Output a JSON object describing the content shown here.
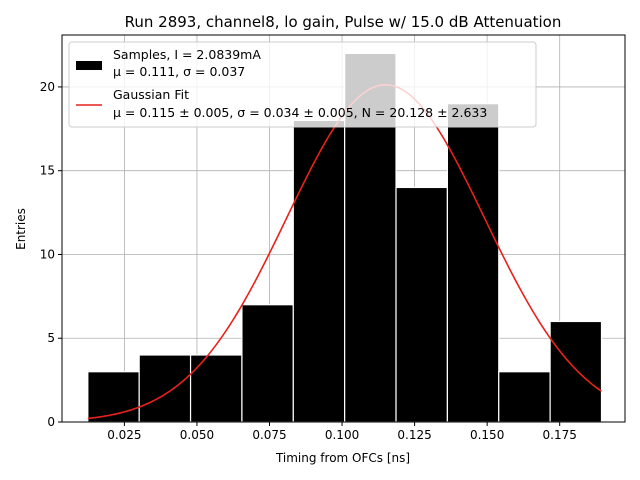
{
  "chart_data": {
    "type": "bar",
    "title": "Run 2893, channel8, lo gain, Pulse w/ 15.0 dB Attenuation",
    "xlabel": "Timing from OFCs [ns]",
    "ylabel": "Entries",
    "xlim": [
      0.0035,
      0.1975
    ],
    "ylim": [
      0,
      23.1
    ],
    "x_ticks": [
      0.025,
      0.05,
      0.075,
      0.1,
      0.125,
      0.15,
      0.175
    ],
    "x_tick_labels": [
      "0.025",
      "0.050",
      "0.075",
      "0.100",
      "0.125",
      "0.150",
      "0.175"
    ],
    "y_ticks": [
      0,
      5,
      10,
      15,
      20
    ],
    "y_tick_labels": [
      "0",
      "5",
      "10",
      "15",
      "20"
    ],
    "grid": true,
    "legend_position": "top-left",
    "histogram": {
      "name_line1": "Samples, I = 2.0839mA",
      "name_line2": "μ = 0.111, σ = 0.037",
      "color": "#000000",
      "bins": [
        {
          "x0": 0.0124,
          "x1": 0.0301,
          "value": 3
        },
        {
          "x0": 0.0301,
          "x1": 0.0478,
          "value": 4
        },
        {
          "x0": 0.0478,
          "x1": 0.0655,
          "value": 4
        },
        {
          "x0": 0.0655,
          "x1": 0.0832,
          "value": 7
        },
        {
          "x0": 0.0832,
          "x1": 0.1009,
          "value": 18
        },
        {
          "x0": 0.1009,
          "x1": 0.1186,
          "value": 22
        },
        {
          "x0": 0.1186,
          "x1": 0.1363,
          "value": 14
        },
        {
          "x0": 0.1363,
          "x1": 0.154,
          "value": 19
        },
        {
          "x0": 0.154,
          "x1": 0.1717,
          "value": 3
        },
        {
          "x0": 0.1717,
          "x1": 0.1894,
          "value": 6
        }
      ]
    },
    "fit": {
      "name_line1": "Gaussian Fit",
      "name_line2": "μ = 0.115 ± 0.005, σ = 0.034 ± 0.005, N = 20.128 ± 2.633",
      "color": "#e8211b",
      "mu": 0.115,
      "sigma": 0.034,
      "N": 20.128,
      "x_range": [
        0.0124,
        0.1894
      ]
    }
  }
}
